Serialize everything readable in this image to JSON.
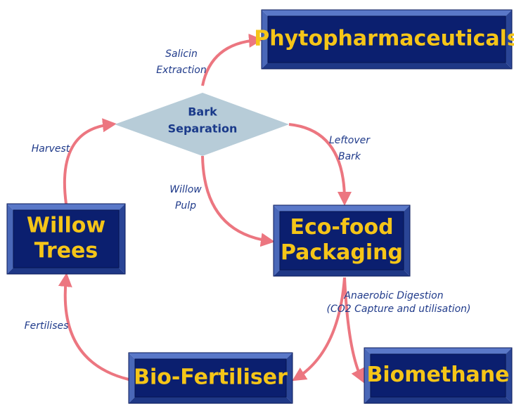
{
  "nodes": [
    {
      "label": [
        "Phytopharmaceuticals"
      ]
    },
    {
      "label": [
        "Bark",
        "Separation"
      ]
    },
    {
      "label": [
        "Willow",
        "Trees"
      ]
    },
    {
      "label": [
        "Eco-food",
        "Packaging"
      ]
    },
    {
      "label": [
        "Bio-Fertiliser"
      ]
    },
    {
      "label": [
        "Biomethane"
      ]
    }
  ],
  "edges": [
    {
      "label": [
        "Salicin",
        "Extraction"
      ]
    },
    {
      "label": [
        "Leftover",
        "Bark"
      ]
    },
    {
      "label": [
        "Willow",
        "Pulp"
      ]
    },
    {
      "label": [
        "Harvest"
      ]
    },
    {
      "label": [
        "Anaerobic Digestion"
      ],
      "note": "(CO2 Capture and utilisation)"
    },
    {
      "label": []
    },
    {
      "label": [
        "Fertilises"
      ]
    }
  ]
}
